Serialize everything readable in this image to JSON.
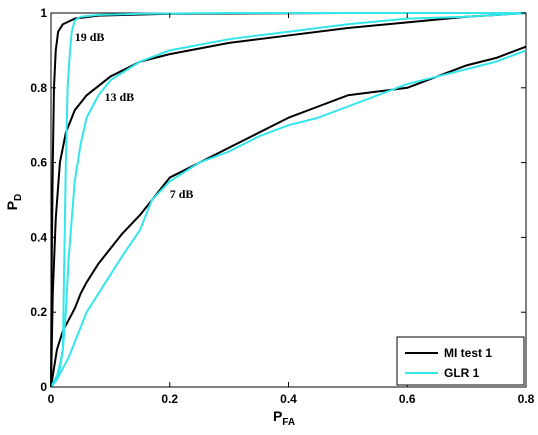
{
  "chart_data": {
    "type": "line",
    "xlabel": "P",
    "xlabel_sub": "FA",
    "ylabel": "P",
    "ylabel_sub": "D",
    "xlim": [
      0,
      0.8
    ],
    "ylim": [
      0,
      1
    ],
    "xticks": [
      0,
      0.2,
      0.4,
      0.6,
      0.8
    ],
    "xtick_labels": [
      "0",
      "0.2",
      "0.4",
      "0.6",
      "0.8"
    ],
    "yticks": [
      0,
      0.2,
      0.4,
      0.6,
      0.8,
      1
    ],
    "ytick_labels": [
      "0",
      "0.2",
      "0.4",
      "0.6",
      "0.8",
      "1"
    ],
    "grid": false,
    "legend_position": "bottom-right",
    "series": [
      {
        "name": "MI test 1",
        "color": "#000000",
        "curves": [
          {
            "snr": "19 dB",
            "points": [
              [
                0,
                0
              ],
              [
                0.001,
                0.3
              ],
              [
                0.003,
                0.6
              ],
              [
                0.005,
                0.8
              ],
              [
                0.008,
                0.9
              ],
              [
                0.012,
                0.95
              ],
              [
                0.02,
                0.97
              ],
              [
                0.04,
                0.985
              ],
              [
                0.08,
                0.993
              ],
              [
                0.2,
                0.998
              ],
              [
                0.5,
                1.0
              ],
              [
                0.8,
                1.0
              ]
            ]
          },
          {
            "snr": "13 dB",
            "points": [
              [
                0,
                0
              ],
              [
                0.003,
                0.25
              ],
              [
                0.008,
                0.45
              ],
              [
                0.015,
                0.6
              ],
              [
                0.025,
                0.68
              ],
              [
                0.04,
                0.74
              ],
              [
                0.06,
                0.78
              ],
              [
                0.1,
                0.83
              ],
              [
                0.15,
                0.87
              ],
              [
                0.2,
                0.89
              ],
              [
                0.3,
                0.92
              ],
              [
                0.4,
                0.94
              ],
              [
                0.5,
                0.96
              ],
              [
                0.6,
                0.975
              ],
              [
                0.7,
                0.99
              ],
              [
                0.8,
                1.0
              ]
            ]
          },
          {
            "snr": "7 dB",
            "points": [
              [
                0,
                0
              ],
              [
                0.01,
                0.1
              ],
              [
                0.02,
                0.15
              ],
              [
                0.03,
                0.18
              ],
              [
                0.04,
                0.21
              ],
              [
                0.05,
                0.25
              ],
              [
                0.06,
                0.28
              ],
              [
                0.08,
                0.33
              ],
              [
                0.1,
                0.37
              ],
              [
                0.12,
                0.41
              ],
              [
                0.15,
                0.46
              ],
              [
                0.18,
                0.52
              ],
              [
                0.2,
                0.56
              ],
              [
                0.25,
                0.6
              ],
              [
                0.3,
                0.64
              ],
              [
                0.35,
                0.68
              ],
              [
                0.4,
                0.72
              ],
              [
                0.45,
                0.75
              ],
              [
                0.5,
                0.78
              ],
              [
                0.55,
                0.79
              ],
              [
                0.6,
                0.8
              ],
              [
                0.65,
                0.83
              ],
              [
                0.7,
                0.86
              ],
              [
                0.75,
                0.88
              ],
              [
                0.8,
                0.91
              ]
            ]
          }
        ]
      },
      {
        "name": "GLR 1",
        "color": "#33e6ec",
        "curves": [
          {
            "snr": "19 dB",
            "points": [
              [
                0,
                0
              ],
              [
                0.01,
                0.02
              ],
              [
                0.015,
                0.05
              ],
              [
                0.02,
                0.1
              ],
              [
                0.022,
                0.3
              ],
              [
                0.025,
                0.6
              ],
              [
                0.028,
                0.8
              ],
              [
                0.032,
                0.9
              ],
              [
                0.035,
                0.95
              ],
              [
                0.04,
                0.98
              ],
              [
                0.05,
                0.99
              ],
              [
                0.08,
                0.995
              ],
              [
                0.15,
                0.998
              ],
              [
                0.3,
                1.0
              ],
              [
                0.8,
                1.0
              ]
            ]
          },
          {
            "snr": "13 dB",
            "points": [
              [
                0,
                0
              ],
              [
                0.01,
                0.03
              ],
              [
                0.015,
                0.06
              ],
              [
                0.02,
                0.1
              ],
              [
                0.025,
                0.2
              ],
              [
                0.03,
                0.35
              ],
              [
                0.04,
                0.55
              ],
              [
                0.05,
                0.65
              ],
              [
                0.06,
                0.72
              ],
              [
                0.08,
                0.78
              ],
              [
                0.1,
                0.82
              ],
              [
                0.15,
                0.87
              ],
              [
                0.2,
                0.9
              ],
              [
                0.3,
                0.93
              ],
              [
                0.4,
                0.95
              ],
              [
                0.5,
                0.97
              ],
              [
                0.6,
                0.985
              ],
              [
                0.7,
                0.99
              ],
              [
                0.8,
                1.0
              ]
            ]
          },
          {
            "snr": "7 dB",
            "points": [
              [
                0,
                0
              ],
              [
                0.01,
                0.02
              ],
              [
                0.02,
                0.05
              ],
              [
                0.03,
                0.08
              ],
              [
                0.04,
                0.12
              ],
              [
                0.05,
                0.16
              ],
              [
                0.06,
                0.2
              ],
              [
                0.08,
                0.25
              ],
              [
                0.1,
                0.3
              ],
              [
                0.12,
                0.35
              ],
              [
                0.15,
                0.42
              ],
              [
                0.17,
                0.5
              ],
              [
                0.2,
                0.55
              ],
              [
                0.25,
                0.6
              ],
              [
                0.3,
                0.63
              ],
              [
                0.35,
                0.67
              ],
              [
                0.4,
                0.7
              ],
              [
                0.45,
                0.72
              ],
              [
                0.5,
                0.75
              ],
              [
                0.55,
                0.78
              ],
              [
                0.6,
                0.81
              ],
              [
                0.65,
                0.83
              ],
              [
                0.7,
                0.85
              ],
              [
                0.75,
                0.87
              ],
              [
                0.8,
                0.9
              ]
            ]
          }
        ]
      }
    ],
    "annotations": [
      {
        "text": "19 dB",
        "x": 0.04,
        "y": 0.925
      },
      {
        "text": "13 dB",
        "x": 0.09,
        "y": 0.765
      },
      {
        "text": "7 dB",
        "x": 0.2,
        "y": 0.505
      }
    ]
  }
}
